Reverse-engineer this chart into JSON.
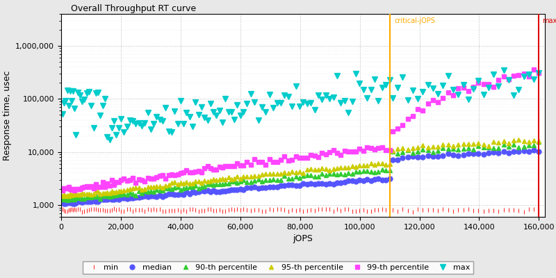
{
  "title": "Overall Throughput RT curve",
  "xlabel": "jOPS",
  "ylabel": "Response time, usec",
  "critical_jops": 110000,
  "max_jops": 160000,
  "xlim": [
    0,
    162000
  ],
  "ylim": [
    600,
    4000000
  ],
  "background_color": "#e8e8e8",
  "plot_bg_color": "#ffffff",
  "grid_color": "#bbbbbb",
  "series": {
    "min": {
      "color": "#ff3333",
      "marker": "|",
      "markersize": 4,
      "label": "min"
    },
    "median": {
      "color": "#5555ff",
      "marker": "o",
      "markersize": 5,
      "label": "median"
    },
    "p90": {
      "color": "#33cc33",
      "marker": "^",
      "markersize": 4,
      "label": "90-th percentile"
    },
    "p95": {
      "color": "#cccc00",
      "marker": "^",
      "markersize": 4,
      "label": "95-th percentile"
    },
    "p99": {
      "color": "#ff44ff",
      "marker": "s",
      "markersize": 4,
      "label": "99-th percentile"
    },
    "max": {
      "color": "#00cccc",
      "marker": "v",
      "markersize": 6,
      "label": "max"
    }
  },
  "critical_line_color": "#ffaa00",
  "max_line_color": "#dd0000",
  "critical_label_color": "#ffaa00",
  "max_label_color": "#dd0000",
  "legend_fontsize": 8,
  "axis_fontsize": 9,
  "tick_fontsize": 8,
  "title_fontsize": 9
}
